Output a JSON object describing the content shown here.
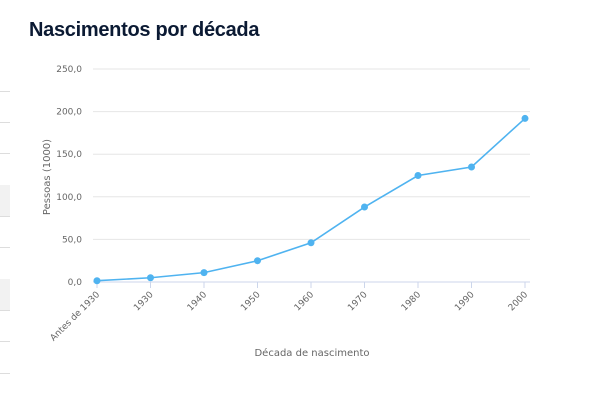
{
  "title": "Nascimentos por década",
  "chart_data": {
    "type": "line",
    "title": "Nascimentos por década",
    "xlabel": "Década de nascimento",
    "ylabel": "Pessoas (1000)",
    "categories": [
      "Antes de 1930",
      "1930",
      "1940",
      "1950",
      "1960",
      "1970",
      "1980",
      "1990",
      "2000"
    ],
    "values": [
      1.5,
      5,
      11,
      25,
      46,
      88,
      125,
      135,
      192
    ],
    "ylim": [
      0,
      250
    ],
    "yticks": [
      "0,0",
      "50,0",
      "100,0",
      "150,0",
      "200,0",
      "250,0"
    ],
    "grid": true,
    "legend": "none",
    "color": "#4fb3f0"
  }
}
